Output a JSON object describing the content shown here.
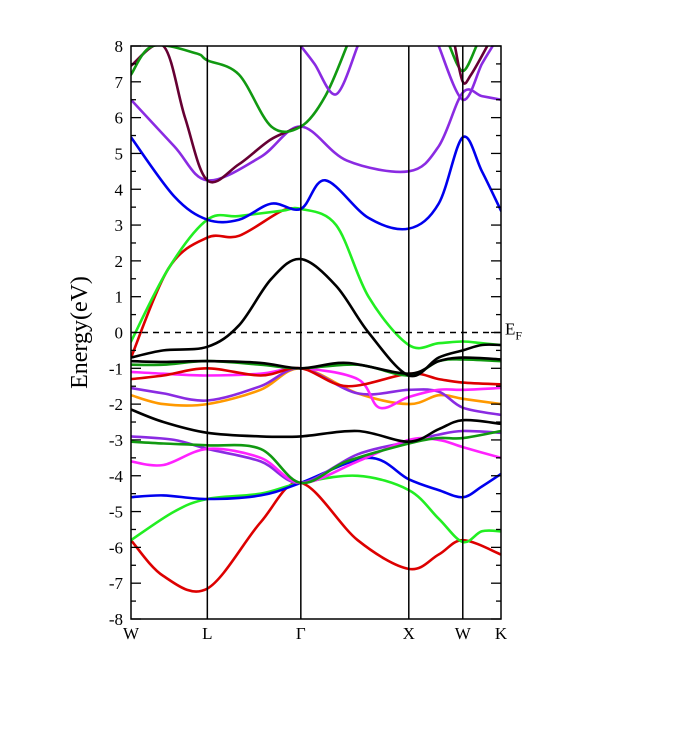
{
  "chart_data": {
    "type": "line",
    "title": "",
    "xlabel": "",
    "ylabel": "Energy(eV)",
    "ylim": [
      -8,
      8
    ],
    "yticks": [
      "8",
      "7",
      "6",
      "5",
      "4",
      "3",
      "2",
      "1",
      "0",
      "-1",
      "-2",
      "-3",
      "-4",
      "-5",
      "-6",
      "-7",
      "-8"
    ],
    "kpoints": [
      {
        "label": "W",
        "x": 0.0
      },
      {
        "label": "L",
        "x": 0.707
      },
      {
        "label": "Γ",
        "x": 1.573
      },
      {
        "label": "X",
        "x": 2.573
      },
      {
        "label": "W",
        "x": 3.073
      },
      {
        "label": "K",
        "x": 3.427
      }
    ],
    "fermi": {
      "energy": 0,
      "label": "E",
      "subscript": "F"
    },
    "series": [
      {
        "color": "#dd0000",
        "points": [
          [
            0.0,
            -5.8
          ],
          [
            0.3,
            -6.8
          ],
          [
            0.707,
            -7.15
          ],
          [
            1.2,
            -5.3
          ],
          [
            1.573,
            -4.2
          ],
          [
            2.1,
            -5.8
          ],
          [
            2.573,
            -6.6
          ],
          [
            2.85,
            -6.2
          ],
          [
            3.073,
            -5.8
          ],
          [
            3.427,
            -6.2
          ]
        ]
      },
      {
        "color": "#22ee22",
        "points": [
          [
            0.0,
            -5.8
          ],
          [
            0.4,
            -5.0
          ],
          [
            0.707,
            -4.65
          ],
          [
            1.2,
            -4.5
          ],
          [
            1.573,
            -4.2
          ],
          [
            2.1,
            -4.0
          ],
          [
            2.573,
            -4.4
          ],
          [
            2.85,
            -5.2
          ],
          [
            3.073,
            -5.85
          ],
          [
            3.25,
            -5.55
          ],
          [
            3.427,
            -5.55
          ]
        ]
      },
      {
        "color": "#0000ee",
        "points": [
          [
            0.0,
            -4.6
          ],
          [
            0.3,
            -4.55
          ],
          [
            0.707,
            -4.65
          ],
          [
            1.2,
            -4.55
          ],
          [
            1.573,
            -4.2
          ],
          [
            2.2,
            -3.5
          ],
          [
            2.573,
            -4.1
          ],
          [
            2.85,
            -4.4
          ],
          [
            3.073,
            -4.6
          ],
          [
            3.25,
            -4.3
          ],
          [
            3.427,
            -3.95
          ]
        ]
      },
      {
        "color": "#8a2be2",
        "points": [
          [
            0.0,
            -2.9
          ],
          [
            0.4,
            -3.0
          ],
          [
            0.707,
            -3.25
          ],
          [
            1.2,
            -3.6
          ],
          [
            1.573,
            -4.2
          ],
          [
            2.1,
            -3.4
          ],
          [
            2.573,
            -3.05
          ],
          [
            2.85,
            -2.85
          ],
          [
            3.073,
            -2.75
          ],
          [
            3.427,
            -2.8
          ]
        ]
      },
      {
        "color": "#ff22ff",
        "points": [
          [
            0.0,
            -3.6
          ],
          [
            0.3,
            -3.7
          ],
          [
            0.707,
            -3.25
          ],
          [
            1.2,
            -3.5
          ],
          [
            1.573,
            -4.2
          ],
          [
            2.1,
            -3.6
          ],
          [
            2.573,
            -3.0
          ],
          [
            2.85,
            -3.0
          ],
          [
            3.073,
            -3.2
          ],
          [
            3.427,
            -3.5
          ]
        ]
      },
      {
        "color": "#119911",
        "points": [
          [
            0.0,
            -3.05
          ],
          [
            0.3,
            -3.1
          ],
          [
            0.707,
            -3.15
          ],
          [
            1.2,
            -3.25
          ],
          [
            1.573,
            -4.2
          ],
          [
            2.0,
            -3.6
          ],
          [
            2.573,
            -3.1
          ],
          [
            2.85,
            -2.95
          ],
          [
            3.073,
            -2.95
          ],
          [
            3.427,
            -2.75
          ]
        ]
      },
      {
        "color": "#000000",
        "points": [
          [
            0.0,
            -2.15
          ],
          [
            0.3,
            -2.5
          ],
          [
            0.707,
            -2.8
          ],
          [
            1.2,
            -2.9
          ],
          [
            1.573,
            -2.9
          ],
          [
            2.1,
            -2.75
          ],
          [
            2.573,
            -3.05
          ],
          [
            2.85,
            -2.7
          ],
          [
            3.073,
            -2.45
          ],
          [
            3.427,
            -2.55
          ]
        ]
      },
      {
        "color": "#ff9900",
        "points": [
          [
            0.0,
            -1.75
          ],
          [
            0.3,
            -2.0
          ],
          [
            0.707,
            -2.0
          ],
          [
            1.2,
            -1.6
          ],
          [
            1.573,
            -1.0
          ],
          [
            2.1,
            -1.7
          ],
          [
            2.573,
            -2.0
          ],
          [
            2.85,
            -1.75
          ],
          [
            3.073,
            -1.85
          ],
          [
            3.427,
            -2.0
          ]
        ]
      },
      {
        "color": "#8a2be2",
        "points": [
          [
            0.0,
            -1.55
          ],
          [
            0.3,
            -1.7
          ],
          [
            0.707,
            -1.9
          ],
          [
            1.2,
            -1.5
          ],
          [
            1.573,
            -1.0
          ],
          [
            2.1,
            -1.7
          ],
          [
            2.573,
            -1.6
          ],
          [
            2.85,
            -1.65
          ],
          [
            3.073,
            -2.1
          ],
          [
            3.427,
            -2.3
          ]
        ]
      },
      {
        "color": "#ff22ff",
        "points": [
          [
            0.0,
            -1.1
          ],
          [
            0.3,
            -1.15
          ],
          [
            0.707,
            -1.2
          ],
          [
            1.2,
            -1.15
          ],
          [
            1.573,
            -1.0
          ],
          [
            2.1,
            -1.3
          ],
          [
            2.3,
            -2.1
          ],
          [
            2.573,
            -1.8
          ],
          [
            2.85,
            -1.6
          ],
          [
            3.073,
            -1.6
          ],
          [
            3.427,
            -1.55
          ]
        ]
      },
      {
        "color": "#dd0000",
        "points": [
          [
            0.0,
            -1.3
          ],
          [
            0.3,
            -1.2
          ],
          [
            0.707,
            -1.0
          ],
          [
            1.2,
            -1.2
          ],
          [
            1.573,
            -1.0
          ],
          [
            2.0,
            -1.5
          ],
          [
            2.573,
            -1.15
          ],
          [
            2.85,
            -1.3
          ],
          [
            3.073,
            -1.4
          ],
          [
            3.427,
            -1.45
          ]
        ]
      },
      {
        "color": "#119911",
        "points": [
          [
            0.0,
            -0.9
          ],
          [
            0.3,
            -0.9
          ],
          [
            0.707,
            -0.8
          ],
          [
            1.2,
            -0.9
          ],
          [
            1.573,
            -1.0
          ],
          [
            2.1,
            -0.9
          ],
          [
            2.573,
            -1.2
          ],
          [
            2.85,
            -0.8
          ],
          [
            3.073,
            -0.75
          ],
          [
            3.427,
            -0.8
          ]
        ]
      },
      {
        "color": "#000000",
        "points": [
          [
            0.0,
            -0.8
          ],
          [
            0.3,
            -0.82
          ],
          [
            0.707,
            -0.8
          ],
          [
            1.2,
            -0.85
          ],
          [
            1.573,
            -1.0
          ],
          [
            2.0,
            -0.85
          ],
          [
            2.573,
            -1.15
          ],
          [
            2.85,
            -0.8
          ],
          [
            3.073,
            -0.7
          ],
          [
            3.427,
            -0.75
          ]
        ]
      },
      {
        "color": "#dd0000",
        "points": [
          [
            0.0,
            -0.7
          ],
          [
            0.35,
            1.8
          ],
          [
            0.707,
            2.65
          ],
          [
            1.0,
            2.7
          ],
          [
            1.4,
            3.4
          ],
          [
            1.573,
            3.45
          ]
        ]
      },
      {
        "color": "#22ee22",
        "points": [
          [
            0.0,
            -0.25
          ],
          [
            0.35,
            1.8
          ],
          [
            0.707,
            3.15
          ],
          [
            1.0,
            3.25
          ],
          [
            1.4,
            3.4
          ],
          [
            1.573,
            3.45
          ],
          [
            1.9,
            3.0
          ],
          [
            2.2,
            1.0
          ],
          [
            2.573,
            -0.35
          ],
          [
            2.85,
            -0.3
          ],
          [
            3.073,
            -0.25
          ],
          [
            3.25,
            -0.3
          ],
          [
            3.427,
            -0.35
          ]
        ]
      },
      {
        "color": "#000000",
        "points": [
          [
            0.0,
            -0.7
          ],
          [
            0.3,
            -0.5
          ],
          [
            0.707,
            -0.4
          ],
          [
            1.0,
            0.2
          ],
          [
            1.3,
            1.5
          ],
          [
            1.573,
            2.05
          ],
          [
            1.9,
            1.3
          ],
          [
            2.2,
            0.0
          ],
          [
            2.573,
            -1.2
          ],
          [
            2.85,
            -0.7
          ],
          [
            3.073,
            -0.5
          ],
          [
            3.25,
            -0.35
          ],
          [
            3.427,
            -0.35
          ]
        ]
      },
      {
        "color": "#0000ee",
        "points": [
          [
            0.0,
            5.45
          ],
          [
            0.4,
            3.8
          ],
          [
            0.707,
            3.15
          ],
          [
            1.0,
            3.15
          ],
          [
            1.3,
            3.6
          ],
          [
            1.573,
            3.45
          ],
          [
            1.8,
            4.25
          ],
          [
            2.2,
            3.2
          ],
          [
            2.573,
            2.9
          ],
          [
            2.85,
            3.6
          ],
          [
            3.073,
            5.45
          ],
          [
            3.25,
            4.5
          ],
          [
            3.427,
            3.4
          ]
        ]
      },
      {
        "color": "#8a2be2",
        "points": [
          [
            0.0,
            6.5
          ],
          [
            0.4,
            5.2
          ],
          [
            0.707,
            4.25
          ],
          [
            1.2,
            4.9
          ],
          [
            1.573,
            5.75
          ],
          [
            2.0,
            4.8
          ],
          [
            2.573,
            4.5
          ],
          [
            2.85,
            5.2
          ],
          [
            3.073,
            6.7
          ],
          [
            3.25,
            6.6
          ],
          [
            3.427,
            6.5
          ]
        ]
      },
      {
        "color": "#660033",
        "points": [
          [
            0.0,
            7.45
          ],
          [
            0.3,
            8.0
          ],
          [
            0.5,
            6.0
          ],
          [
            0.707,
            4.25
          ],
          [
            1.0,
            4.7
          ],
          [
            1.3,
            5.4
          ],
          [
            1.573,
            5.75
          ]
        ]
      },
      {
        "color": "#119911",
        "points": [
          [
            0.0,
            7.2
          ],
          [
            0.2,
            8.0
          ],
          [
            0.6,
            7.8
          ],
          [
            0.707,
            7.6
          ],
          [
            1.0,
            7.2
          ],
          [
            1.3,
            5.75
          ],
          [
            1.573,
            5.75
          ],
          [
            1.8,
            6.6
          ],
          [
            2.0,
            8.0
          ]
        ]
      },
      {
        "color": "#8a2be2",
        "points": [
          [
            1.573,
            8.0
          ],
          [
            1.7,
            7.5
          ],
          [
            1.9,
            6.65
          ],
          [
            2.1,
            8.0
          ]
        ]
      },
      {
        "color": "#8a2be2",
        "points": [
          [
            2.85,
            8.0
          ],
          [
            3.073,
            6.5
          ],
          [
            3.25,
            7.5
          ],
          [
            3.35,
            8.0
          ]
        ]
      },
      {
        "color": "#119911",
        "points": [
          [
            2.95,
            8.0
          ],
          [
            3.073,
            7.3
          ],
          [
            3.2,
            8.0
          ]
        ]
      },
      {
        "color": "#660033",
        "points": [
          [
            3.0,
            8.0
          ],
          [
            3.073,
            7.0
          ],
          [
            3.15,
            7.2
          ],
          [
            3.3,
            8.0
          ]
        ]
      }
    ]
  }
}
